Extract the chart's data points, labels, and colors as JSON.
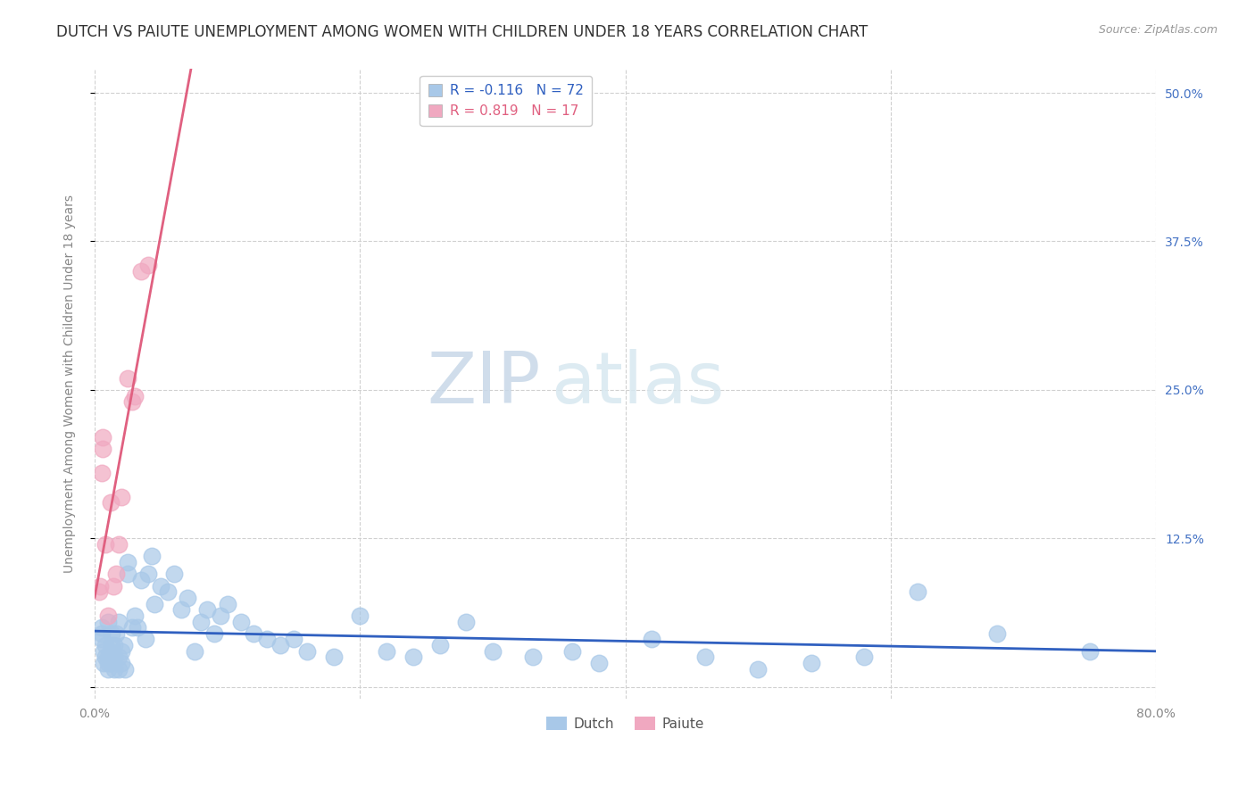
{
  "title": "DUTCH VS PAIUTE UNEMPLOYMENT AMONG WOMEN WITH CHILDREN UNDER 18 YEARS CORRELATION CHART",
  "source": "Source: ZipAtlas.com",
  "ylabel": "Unemployment Among Women with Children Under 18 years",
  "xlim": [
    0.0,
    0.8
  ],
  "ylim": [
    -0.01,
    0.52
  ],
  "yticks": [
    0.0,
    0.125,
    0.25,
    0.375,
    0.5
  ],
  "yticklabels": [
    "",
    "12.5%",
    "25.0%",
    "37.5%",
    "50.0%"
  ],
  "dutch_color": "#a8c8e8",
  "paiute_color": "#f0a8c0",
  "dutch_line_color": "#3060c0",
  "paiute_line_color": "#e06080",
  "legend_dutch_label": "Dutch",
  "legend_paiute_label": "Paiute",
  "legend_dutch_R": "-0.116",
  "legend_dutch_N": "72",
  "legend_paiute_R": "0.819",
  "legend_paiute_N": "17",
  "watermark_zip": "ZIP",
  "watermark_atlas": "atlas",
  "background_color": "#ffffff",
  "grid_color": "#d0d0d0",
  "title_fontsize": 12,
  "axis_label_fontsize": 10,
  "tick_fontsize": 10,
  "legend_fontsize": 11,
  "right_ytick_color": "#4472c4",
  "dutch_x": [
    0.005,
    0.005,
    0.005,
    0.007,
    0.007,
    0.008,
    0.008,
    0.01,
    0.01,
    0.01,
    0.01,
    0.012,
    0.012,
    0.013,
    0.013,
    0.014,
    0.015,
    0.015,
    0.015,
    0.016,
    0.018,
    0.018,
    0.018,
    0.02,
    0.02,
    0.022,
    0.023,
    0.025,
    0.025,
    0.028,
    0.03,
    0.032,
    0.035,
    0.038,
    0.04,
    0.043,
    0.045,
    0.05,
    0.055,
    0.06,
    0.065,
    0.07,
    0.075,
    0.08,
    0.085,
    0.09,
    0.095,
    0.1,
    0.11,
    0.12,
    0.13,
    0.14,
    0.15,
    0.16,
    0.18,
    0.2,
    0.22,
    0.24,
    0.26,
    0.28,
    0.3,
    0.33,
    0.36,
    0.38,
    0.42,
    0.46,
    0.5,
    0.54,
    0.58,
    0.62,
    0.68,
    0.75
  ],
  "dutch_y": [
    0.04,
    0.045,
    0.05,
    0.02,
    0.03,
    0.025,
    0.035,
    0.015,
    0.02,
    0.025,
    0.055,
    0.02,
    0.03,
    0.035,
    0.045,
    0.025,
    0.015,
    0.025,
    0.035,
    0.045,
    0.015,
    0.025,
    0.055,
    0.02,
    0.03,
    0.035,
    0.015,
    0.095,
    0.105,
    0.05,
    0.06,
    0.05,
    0.09,
    0.04,
    0.095,
    0.11,
    0.07,
    0.085,
    0.08,
    0.095,
    0.065,
    0.075,
    0.03,
    0.055,
    0.065,
    0.045,
    0.06,
    0.07,
    0.055,
    0.045,
    0.04,
    0.035,
    0.04,
    0.03,
    0.025,
    0.06,
    0.03,
    0.025,
    0.035,
    0.055,
    0.03,
    0.025,
    0.03,
    0.02,
    0.04,
    0.025,
    0.015,
    0.02,
    0.025,
    0.08,
    0.045,
    0.03
  ],
  "paiute_x": [
    0.003,
    0.004,
    0.005,
    0.006,
    0.006,
    0.008,
    0.01,
    0.012,
    0.014,
    0.016,
    0.018,
    0.02,
    0.025,
    0.028,
    0.03,
    0.035,
    0.04
  ],
  "paiute_y": [
    0.08,
    0.085,
    0.18,
    0.2,
    0.21,
    0.12,
    0.06,
    0.155,
    0.085,
    0.095,
    0.12,
    0.16,
    0.26,
    0.24,
    0.245,
    0.35,
    0.355
  ]
}
